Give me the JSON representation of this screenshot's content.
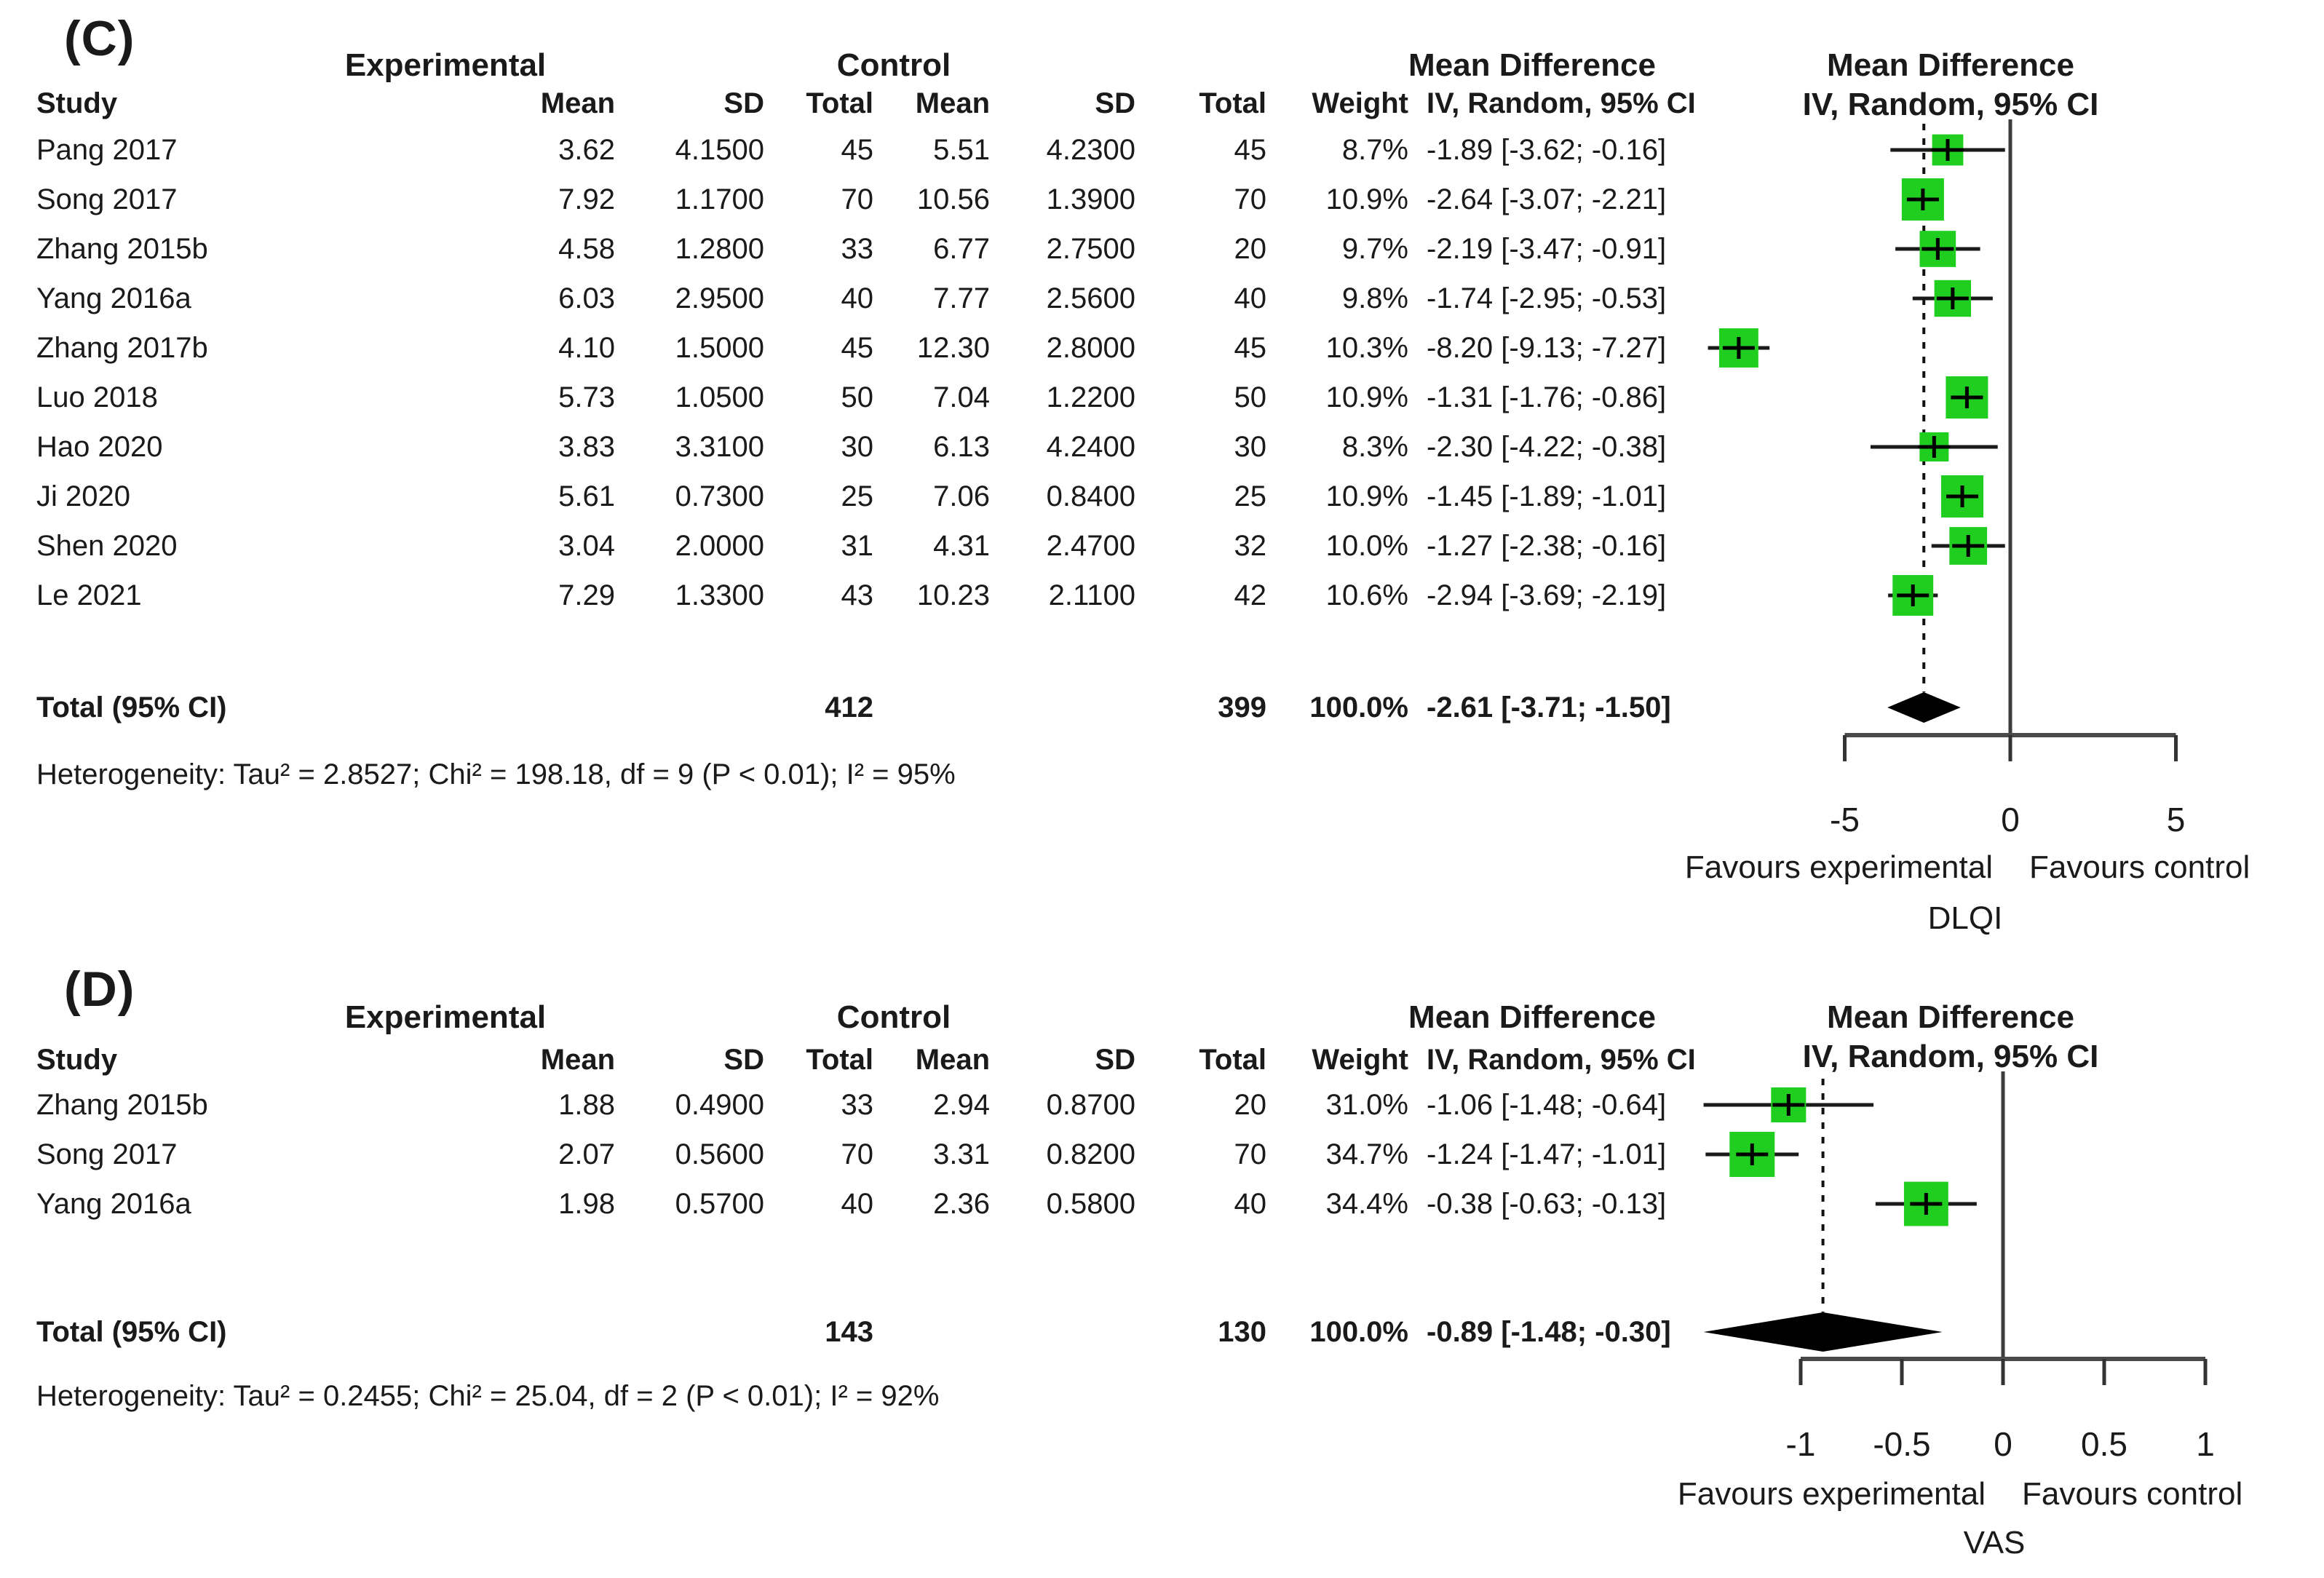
{
  "figure": {
    "background": "#ffffff"
  },
  "chart_data": [
    {
      "type": "forest",
      "panel_label": "(C)",
      "outcome": "DLQI",
      "group_headers": {
        "experimental": "Experimental",
        "control": "Control",
        "md_text_col": "Mean Difference",
        "md_plot_line1": "Mean Difference",
        "md_plot_line2": "IV, Random, 95% CI"
      },
      "column_headers": {
        "study": "Study",
        "exp_mean": "Mean",
        "exp_sd": "SD",
        "exp_total": "Total",
        "ctrl_mean": "Mean",
        "ctrl_sd": "SD",
        "ctrl_total": "Total",
        "weight": "Weight",
        "ci": "IV, Random, 95% CI"
      },
      "studies": [
        {
          "study": "Pang 2017",
          "exp_mean": "3.62",
          "exp_sd": "4.1500",
          "exp_total": "45",
          "ctrl_mean": "5.51",
          "ctrl_sd": "4.2300",
          "ctrl_total": "45",
          "weight": "8.7%",
          "ci_text": "-1.89 [-3.62; -0.16]",
          "md": -1.89,
          "lo": -3.62,
          "hi": -0.16
        },
        {
          "study": "Song 2017",
          "exp_mean": "7.92",
          "exp_sd": "1.1700",
          "exp_total": "70",
          "ctrl_mean": "10.56",
          "ctrl_sd": "1.3900",
          "ctrl_total": "70",
          "weight": "10.9%",
          "ci_text": "-2.64 [-3.07; -2.21]",
          "md": -2.64,
          "lo": -3.07,
          "hi": -2.21
        },
        {
          "study": "Zhang 2015b",
          "exp_mean": "4.58",
          "exp_sd": "1.2800",
          "exp_total": "33",
          "ctrl_mean": "6.77",
          "ctrl_sd": "2.7500",
          "ctrl_total": "20",
          "weight": "9.7%",
          "ci_text": "-2.19 [-3.47; -0.91]",
          "md": -2.19,
          "lo": -3.47,
          "hi": -0.91
        },
        {
          "study": "Yang 2016a",
          "exp_mean": "6.03",
          "exp_sd": "2.9500",
          "exp_total": "40",
          "ctrl_mean": "7.77",
          "ctrl_sd": "2.5600",
          "ctrl_total": "40",
          "weight": "9.8%",
          "ci_text": "-1.74 [-2.95; -0.53]",
          "md": -1.74,
          "lo": -2.95,
          "hi": -0.53
        },
        {
          "study": "Zhang 2017b",
          "exp_mean": "4.10",
          "exp_sd": "1.5000",
          "exp_total": "45",
          "ctrl_mean": "12.30",
          "ctrl_sd": "2.8000",
          "ctrl_total": "45",
          "weight": "10.3%",
          "ci_text": "-8.20 [-9.13; -7.27]",
          "md": -8.2,
          "lo": -9.13,
          "hi": -7.27
        },
        {
          "study": "Luo 2018",
          "exp_mean": "5.73",
          "exp_sd": "1.0500",
          "exp_total": "50",
          "ctrl_mean": "7.04",
          "ctrl_sd": "1.2200",
          "ctrl_total": "50",
          "weight": "10.9%",
          "ci_text": "-1.31 [-1.76; -0.86]",
          "md": -1.31,
          "lo": -1.76,
          "hi": -0.86
        },
        {
          "study": "Hao 2020",
          "exp_mean": "3.83",
          "exp_sd": "3.3100",
          "exp_total": "30",
          "ctrl_mean": "6.13",
          "ctrl_sd": "4.2400",
          "ctrl_total": "30",
          "weight": "8.3%",
          "ci_text": "-2.30 [-4.22; -0.38]",
          "md": -2.3,
          "lo": -4.22,
          "hi": -0.38
        },
        {
          "study": "Ji 2020",
          "exp_mean": "5.61",
          "exp_sd": "0.7300",
          "exp_total": "25",
          "ctrl_mean": "7.06",
          "ctrl_sd": "0.8400",
          "ctrl_total": "25",
          "weight": "10.9%",
          "ci_text": "-1.45 [-1.89; -1.01]",
          "md": -1.45,
          "lo": -1.89,
          "hi": -1.01
        },
        {
          "study": "Shen 2020",
          "exp_mean": "3.04",
          "exp_sd": "2.0000",
          "exp_total": "31",
          "ctrl_mean": "4.31",
          "ctrl_sd": "2.4700",
          "ctrl_total": "32",
          "weight": "10.0%",
          "ci_text": "-1.27 [-2.38; -0.16]",
          "md": -1.27,
          "lo": -2.38,
          "hi": -0.16
        },
        {
          "study": "Le 2021",
          "exp_mean": "7.29",
          "exp_sd": "1.3300",
          "exp_total": "43",
          "ctrl_mean": "10.23",
          "ctrl_sd": "2.1100",
          "ctrl_total": "42",
          "weight": "10.6%",
          "ci_text": "-2.94 [-3.69; -2.19]",
          "md": -2.94,
          "lo": -3.69,
          "hi": -2.19
        }
      ],
      "total": {
        "label": "Total (95% CI)",
        "exp_total": "412",
        "ctrl_total": "399",
        "weight": "100.0%",
        "ci_text": "-2.61 [-3.71; -1.50]",
        "md": -2.61,
        "lo": -3.71,
        "hi": -1.5
      },
      "heterogeneity": "Heterogeneity: Tau² = 2.8527; Chi² = 198.18, df = 9 (P < 0.01); I² = 95%",
      "axis": {
        "min": -5,
        "max": 5,
        "ticks": [
          -5,
          0,
          5
        ],
        "tick_labels": [
          "-5",
          "0",
          "5"
        ],
        "favours_left": "Favours experimental",
        "favours_right": "Favours control",
        "axis_label": "DLQI"
      },
      "colors": {
        "square": "#1fce1f",
        "diamond": "#000000",
        "ci_line": "#1a1a1a",
        "zero_line": "#3d3d3d",
        "axis_line": "#4a4a4a",
        "dashed_line": "#111111"
      }
    },
    {
      "type": "forest",
      "panel_label": "(D)",
      "outcome": "VAS",
      "group_headers": {
        "experimental": "Experimental",
        "control": "Control",
        "md_text_col": "Mean Difference",
        "md_plot_line1": "Mean Difference",
        "md_plot_line2": "IV, Random, 95% CI"
      },
      "column_headers": {
        "study": "Study",
        "exp_mean": "Mean",
        "exp_sd": "SD",
        "exp_total": "Total",
        "ctrl_mean": "Mean",
        "ctrl_sd": "SD",
        "ctrl_total": "Total",
        "weight": "Weight",
        "ci": "IV, Random, 95% CI"
      },
      "studies": [
        {
          "study": "Zhang 2015b",
          "exp_mean": "1.88",
          "exp_sd": "0.4900",
          "exp_total": "33",
          "ctrl_mean": "2.94",
          "ctrl_sd": "0.8700",
          "ctrl_total": "20",
          "weight": "31.0%",
          "ci_text": "-1.06 [-1.48; -0.64]",
          "md": -1.06,
          "lo": -1.48,
          "hi": -0.64
        },
        {
          "study": "Song 2017",
          "exp_mean": "2.07",
          "exp_sd": "0.5600",
          "exp_total": "70",
          "ctrl_mean": "3.31",
          "ctrl_sd": "0.8200",
          "ctrl_total": "70",
          "weight": "34.7%",
          "ci_text": "-1.24 [-1.47; -1.01]",
          "md": -1.24,
          "lo": -1.47,
          "hi": -1.01
        },
        {
          "study": "Yang 2016a",
          "exp_mean": "1.98",
          "exp_sd": "0.5700",
          "exp_total": "40",
          "ctrl_mean": "2.36",
          "ctrl_sd": "0.5800",
          "ctrl_total": "40",
          "weight": "34.4%",
          "ci_text": "-0.38 [-0.63; -0.13]",
          "md": -0.38,
          "lo": -0.63,
          "hi": -0.13
        }
      ],
      "total": {
        "label": "Total (95% CI)",
        "exp_total": "143",
        "ctrl_total": "130",
        "weight": "100.0%",
        "ci_text": "-0.89 [-1.48; -0.30]",
        "md": -0.89,
        "lo": -1.48,
        "hi": -0.3
      },
      "heterogeneity": "Heterogeneity: Tau² = 0.2455; Chi² = 25.04, df = 2 (P < 0.01); I² = 92%",
      "axis": {
        "min": -1,
        "max": 1,
        "ticks": [
          -1,
          -0.5,
          0,
          0.5,
          1
        ],
        "tick_labels": [
          "-1",
          "-0.5",
          "0",
          "0.5",
          "1"
        ],
        "favours_left": "Favours experimental",
        "favours_right": "Favours control",
        "axis_label": "VAS"
      },
      "colors": {
        "square": "#1fce1f",
        "diamond": "#000000",
        "ci_line": "#1a1a1a",
        "zero_line": "#3d3d3d",
        "axis_line": "#4a4a4a",
        "dashed_line": "#111111"
      }
    }
  ]
}
